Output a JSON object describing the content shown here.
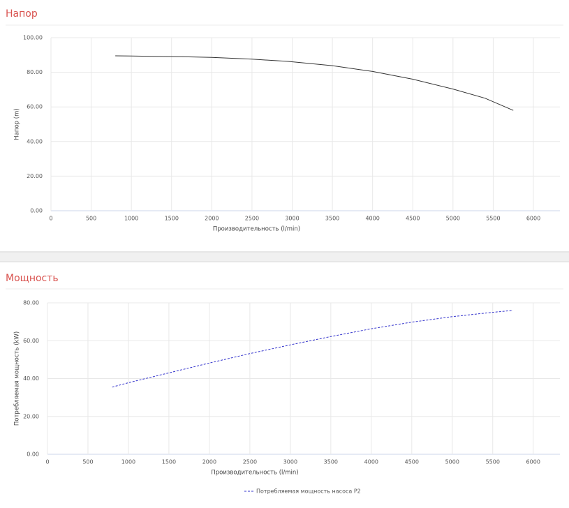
{
  "chart_data": [
    {
      "type": "line",
      "title": "Напор",
      "xlabel": "Производительность (l/min)",
      "ylabel": "Напор (m)",
      "x": [
        800,
        1000,
        1130,
        1620,
        2000,
        2500,
        2950,
        3500,
        4000,
        4500,
        5000,
        5400,
        5750
      ],
      "series": [
        {
          "color": "#333333",
          "values": [
            89.5,
            89.4,
            89.3,
            89.0,
            88.6,
            87.6,
            86.3,
            83.8,
            80.5,
            76.0,
            70.3,
            65.0,
            58.0
          ]
        }
      ],
      "xlim": [
        0,
        6330
      ],
      "ylim": [
        0,
        100
      ],
      "xticks": [
        0,
        500,
        1000,
        1500,
        2000,
        2500,
        3000,
        3500,
        4000,
        4500,
        5000,
        5500,
        6000
      ],
      "yticks": [
        {
          "value": 0,
          "label": "0.00"
        },
        {
          "value": 20,
          "label": "20.00"
        },
        {
          "value": 40,
          "label": "40.00"
        },
        {
          "value": 60,
          "label": "60.00"
        },
        {
          "value": 80,
          "label": "80.00"
        },
        {
          "value": 100,
          "label": "100.00"
        }
      ],
      "grid": true
    },
    {
      "type": "line",
      "title": "Мощность",
      "xlabel": "Производительность (l/min)",
      "ylabel": "Потребляемая мощность (kW)",
      "x": [
        800,
        1000,
        1500,
        2000,
        2500,
        3000,
        3500,
        4000,
        4500,
        5000,
        5500,
        5750
      ],
      "series": [
        {
          "name": "Потребляемая мощность насоса P2",
          "color": "#3333cc",
          "dashed": true,
          "values": [
            35.5,
            37.8,
            43.0,
            48.2,
            53.2,
            57.8,
            62.2,
            66.3,
            69.8,
            72.7,
            75.0,
            76.0
          ]
        }
      ],
      "xlim": [
        0,
        6330
      ],
      "ylim": [
        0,
        80
      ],
      "xticks": [
        0,
        500,
        1000,
        1500,
        2000,
        2500,
        3000,
        3500,
        4000,
        4500,
        5000,
        5500,
        6000
      ],
      "yticks": [
        {
          "value": 0,
          "label": "0.00"
        },
        {
          "value": 20,
          "label": "20.00"
        },
        {
          "value": 40,
          "label": "40.00"
        },
        {
          "value": 60,
          "label": "60.00"
        },
        {
          "value": 80,
          "label": "80.00"
        }
      ],
      "grid": true,
      "legend": "bottom"
    }
  ]
}
